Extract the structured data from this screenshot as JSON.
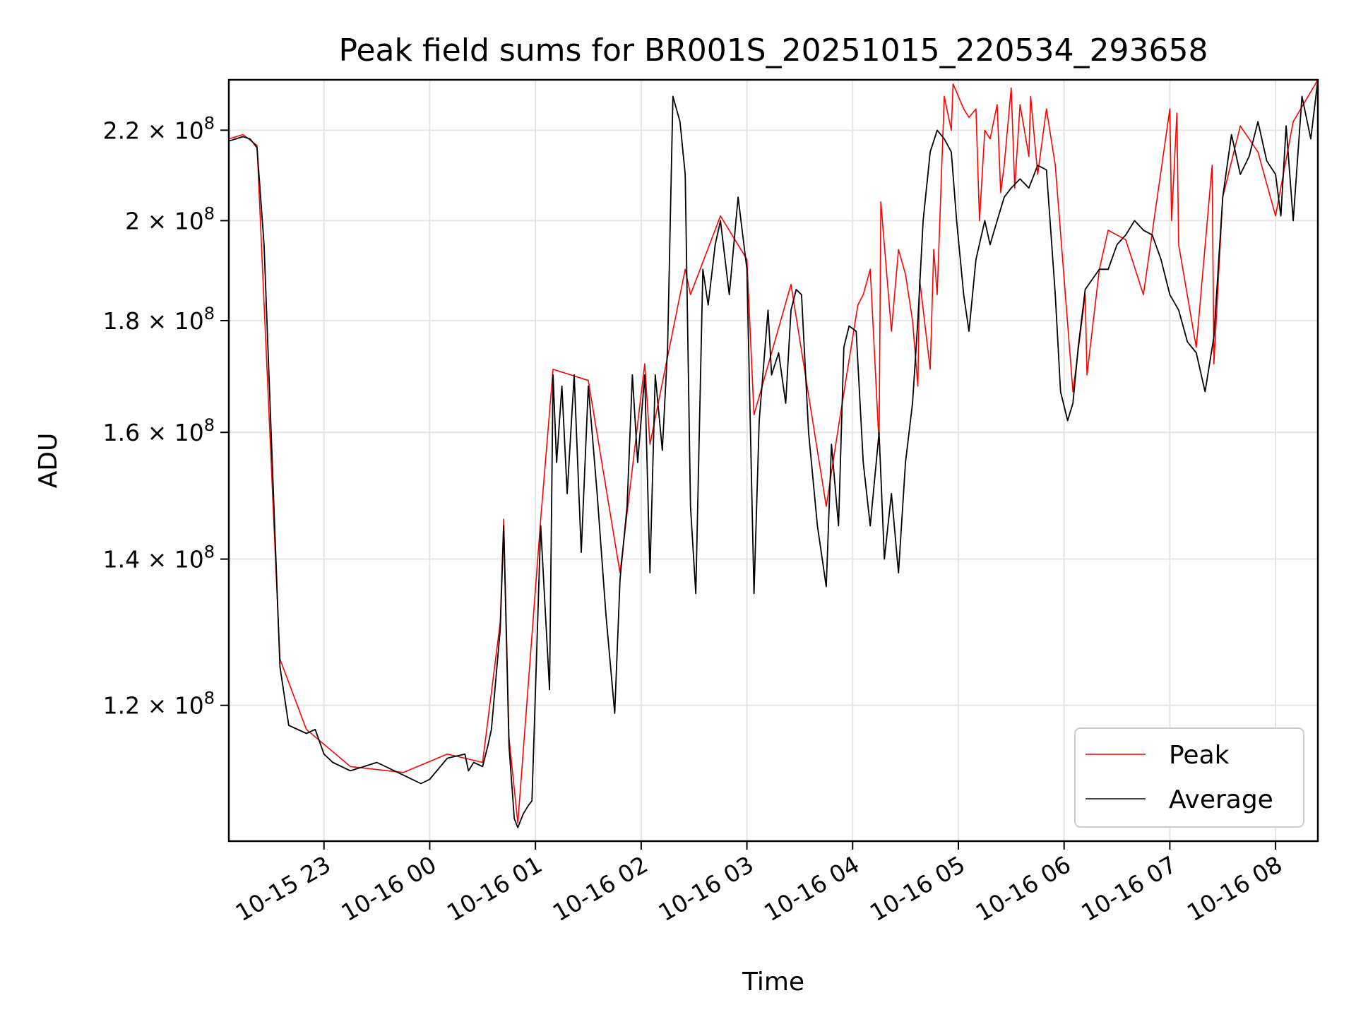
{
  "chart_data": {
    "type": "line",
    "title": "Peak field sums for BR001S_20251015_220534_293658",
    "xlabel": "Time",
    "ylabel": "ADU",
    "yscale": "log",
    "grid": true,
    "legend_position": "lower-right",
    "xlim": [
      "2025-10-15 22:06",
      "2025-10-16 08:24"
    ],
    "ylim": [
      104000000,
      232000000
    ],
    "x_ticks": [
      {
        "value": "2025-10-15 23:00",
        "label": "10-15 23"
      },
      {
        "value": "2025-10-16 00:00",
        "label": "10-16 00"
      },
      {
        "value": "2025-10-16 01:00",
        "label": "10-16 01"
      },
      {
        "value": "2025-10-16 02:00",
        "label": "10-16 02"
      },
      {
        "value": "2025-10-16 03:00",
        "label": "10-16 03"
      },
      {
        "value": "2025-10-16 04:00",
        "label": "10-16 04"
      },
      {
        "value": "2025-10-16 05:00",
        "label": "10-16 05"
      },
      {
        "value": "2025-10-16 06:00",
        "label": "10-16 06"
      },
      {
        "value": "2025-10-16 07:00",
        "label": "10-16 07"
      },
      {
        "value": "2025-10-16 08:00",
        "label": "10-16 08"
      }
    ],
    "y_ticks": [
      {
        "value": 120000000,
        "mantissa": "1.2",
        "exponent": "8"
      },
      {
        "value": 140000000,
        "mantissa": "1.4",
        "exponent": "8"
      },
      {
        "value": 160000000,
        "mantissa": "1.6",
        "exponent": "8"
      },
      {
        "value": 180000000,
        "mantissa": "1.8",
        "exponent": "8"
      },
      {
        "value": 200000000,
        "mantissa": "2",
        "exponent": "8"
      },
      {
        "value": 220000000,
        "mantissa": "2.2",
        "exponent": "8"
      }
    ],
    "series": [
      {
        "name": "Average",
        "color": "#000000",
        "x": [
          "2025-10-15 22:06",
          "2025-10-15 22:10",
          "2025-10-15 22:14",
          "2025-10-15 22:18",
          "2025-10-15 22:22",
          "2025-10-15 22:26",
          "2025-10-15 22:30",
          "2025-10-15 22:35",
          "2025-10-15 22:40",
          "2025-10-15 22:50",
          "2025-10-15 22:55",
          "2025-10-15 23:00",
          "2025-10-15 23:05",
          "2025-10-15 23:15",
          "2025-10-15 23:30",
          "2025-10-15 23:45",
          "2025-10-15 23:55",
          "2025-10-16 00:00",
          "2025-10-16 00:10",
          "2025-10-16 00:20",
          "2025-10-16 00:22",
          "2025-10-16 00:25",
          "2025-10-16 00:30",
          "2025-10-16 00:33",
          "2025-10-16 00:35",
          "2025-10-16 00:40",
          "2025-10-16 00:42",
          "2025-10-16 00:45",
          "2025-10-16 00:48",
          "2025-10-16 00:50",
          "2025-10-16 00:53",
          "2025-10-16 00:56",
          "2025-10-16 00:58",
          "2025-10-16 01:03",
          "2025-10-16 01:08",
          "2025-10-16 01:10",
          "2025-10-16 01:12",
          "2025-10-16 01:15",
          "2025-10-16 01:18",
          "2025-10-16 01:22",
          "2025-10-16 01:26",
          "2025-10-16 01:30",
          "2025-10-16 01:35",
          "2025-10-16 01:40",
          "2025-10-16 01:45",
          "2025-10-16 01:48",
          "2025-10-16 01:52",
          "2025-10-16 01:55",
          "2025-10-16 01:58",
          "2025-10-16 02:02",
          "2025-10-16 02:05",
          "2025-10-16 02:08",
          "2025-10-16 02:12",
          "2025-10-16 02:15",
          "2025-10-16 02:18",
          "2025-10-16 02:22",
          "2025-10-16 02:25",
          "2025-10-16 02:28",
          "2025-10-16 02:31",
          "2025-10-16 02:35",
          "2025-10-16 02:38",
          "2025-10-16 02:42",
          "2025-10-16 02:45",
          "2025-10-16 02:50",
          "2025-10-16 02:55",
          "2025-10-16 03:00",
          "2025-10-16 03:04",
          "2025-10-16 03:07",
          "2025-10-16 03:12",
          "2025-10-16 03:14",
          "2025-10-16 03:18",
          "2025-10-16 03:22",
          "2025-10-16 03:25",
          "2025-10-16 03:28",
          "2025-10-16 03:31",
          "2025-10-16 03:35",
          "2025-10-16 03:40",
          "2025-10-16 03:45",
          "2025-10-16 03:48",
          "2025-10-16 03:52",
          "2025-10-16 03:55",
          "2025-10-16 03:58",
          "2025-10-16 04:02",
          "2025-10-16 04:06",
          "2025-10-16 04:10",
          "2025-10-16 04:15",
          "2025-10-16 04:18",
          "2025-10-16 04:22",
          "2025-10-16 04:26",
          "2025-10-16 04:30",
          "2025-10-16 04:34",
          "2025-10-16 04:37",
          "2025-10-16 04:40",
          "2025-10-16 04:44",
          "2025-10-16 04:48",
          "2025-10-16 04:52",
          "2025-10-16 04:56",
          "2025-10-16 04:59",
          "2025-10-16 05:03",
          "2025-10-16 05:06",
          "2025-10-16 05:10",
          "2025-10-16 05:15",
          "2025-10-16 05:18",
          "2025-10-16 05:22",
          "2025-10-16 05:26",
          "2025-10-16 05:30",
          "2025-10-16 05:35",
          "2025-10-16 05:40",
          "2025-10-16 05:45",
          "2025-10-16 05:50",
          "2025-10-16 05:55",
          "2025-10-16 05:58",
          "2025-10-16 06:02",
          "2025-10-16 06:05",
          "2025-10-16 06:08",
          "2025-10-16 06:12",
          "2025-10-16 06:16",
          "2025-10-16 06:20",
          "2025-10-16 06:25",
          "2025-10-16 06:30",
          "2025-10-16 06:35",
          "2025-10-16 06:40",
          "2025-10-16 06:45",
          "2025-10-16 06:50",
          "2025-10-16 06:55",
          "2025-10-16 07:00",
          "2025-10-16 07:05",
          "2025-10-16 07:10",
          "2025-10-16 07:15",
          "2025-10-16 07:20",
          "2025-10-16 07:25",
          "2025-10-16 07:30",
          "2025-10-16 07:35",
          "2025-10-16 07:40",
          "2025-10-16 07:45",
          "2025-10-16 07:50",
          "2025-10-16 07:55",
          "2025-10-16 08:00",
          "2025-10-16 08:03",
          "2025-10-16 08:06",
          "2025-10-16 08:10",
          "2025-10-16 08:15",
          "2025-10-16 08:20",
          "2025-10-16 08:24"
        ],
        "values": [
          217500000,
          218000000,
          218500000,
          218000000,
          216000000,
          195000000,
          160000000,
          125000000,
          117500000,
          116500000,
          117000000,
          114000000,
          113000000,
          112000000,
          113000000,
          111500000,
          110500000,
          111000000,
          113500000,
          114000000,
          112000000,
          113000000,
          112500000,
          115000000,
          117000000,
          130000000,
          145000000,
          115000000,
          106500000,
          105500000,
          107000000,
          108000000,
          108500000,
          145000000,
          122000000,
          170000000,
          155000000,
          168000000,
          150000000,
          170000000,
          141000000,
          168000000,
          150000000,
          132000000,
          119000000,
          137000000,
          148000000,
          170000000,
          155000000,
          170000000,
          138000000,
          170000000,
          157000000,
          175000000,
          228000000,
          222000000,
          210000000,
          148000000,
          135000000,
          190000000,
          183000000,
          195000000,
          200000000,
          185000000,
          205000000,
          190000000,
          135000000,
          162000000,
          182000000,
          170000000,
          174000000,
          165000000,
          182000000,
          186000000,
          185000000,
          160000000,
          145000000,
          136000000,
          158000000,
          145000000,
          175000000,
          179000000,
          178000000,
          155000000,
          145000000,
          160000000,
          140000000,
          150000000,
          138000000,
          155000000,
          165000000,
          180000000,
          200000000,
          215000000,
          220000000,
          218000000,
          215000000,
          200000000,
          185000000,
          178000000,
          192000000,
          200000000,
          195000000,
          200000000,
          205000000,
          207000000,
          209000000,
          207000000,
          212000000,
          211000000,
          185000000,
          167000000,
          162000000,
          165000000,
          175000000,
          186000000,
          188000000,
          190000000,
          190000000,
          195000000,
          197000000,
          200000000,
          198000000,
          197000000,
          192000000,
          185000000,
          182000000,
          176000000,
          174000000,
          167000000,
          177000000,
          205000000,
          219000000,
          210000000,
          214000000,
          222000000,
          213000000,
          210000000,
          201000000,
          221000000,
          200000000,
          228000000,
          218000000,
          232000000
        ]
      },
      {
        "name": "Peak",
        "color": "#ff0000",
        "x": [
          "2025-10-15 22:06",
          "2025-10-15 22:14",
          "2025-10-15 22:22",
          "2025-10-15 22:35",
          "2025-10-15 22:50",
          "2025-10-15 23:15",
          "2025-10-15 23:45",
          "2025-10-16 00:10",
          "2025-10-16 00:30",
          "2025-10-16 00:40",
          "2025-10-16 00:42",
          "2025-10-16 00:45",
          "2025-10-16 00:50",
          "2025-10-16 01:03",
          "2025-10-16 01:10",
          "2025-10-16 01:30",
          "2025-10-16 01:48",
          "2025-10-16 02:02",
          "2025-10-16 02:05",
          "2025-10-16 02:25",
          "2025-10-16 02:28",
          "2025-10-16 02:45",
          "2025-10-16 03:00",
          "2025-10-16 03:04",
          "2025-10-16 03:25",
          "2025-10-16 03:45",
          "2025-10-16 03:52",
          "2025-10-16 04:02",
          "2025-10-16 04:03",
          "2025-10-16 04:06",
          "2025-10-16 04:10",
          "2025-10-16 04:15",
          "2025-10-16 04:16",
          "2025-10-16 04:22",
          "2025-10-16 04:26",
          "2025-10-16 04:30",
          "2025-10-16 04:34",
          "2025-10-16 04:37",
          "2025-10-16 04:38",
          "2025-10-16 04:44",
          "2025-10-16 04:46",
          "2025-10-16 04:48",
          "2025-10-16 04:52",
          "2025-10-16 04:56",
          "2025-10-16 04:57",
          "2025-10-16 05:03",
          "2025-10-16 05:06",
          "2025-10-16 05:10",
          "2025-10-16 05:12",
          "2025-10-16 05:15",
          "2025-10-16 05:18",
          "2025-10-16 05:22",
          "2025-10-16 05:24",
          "2025-10-16 05:26",
          "2025-10-16 05:30",
          "2025-10-16 05:32",
          "2025-10-16 05:35",
          "2025-10-16 05:40",
          "2025-10-16 05:41",
          "2025-10-16 05:45",
          "2025-10-16 05:50",
          "2025-10-16 05:55",
          "2025-10-16 06:05",
          "2025-10-16 06:12",
          "2025-10-16 06:13",
          "2025-10-16 06:20",
          "2025-10-16 06:25",
          "2025-10-16 06:35",
          "2025-10-16 06:45",
          "2025-10-16 07:00",
          "2025-10-16 07:01",
          "2025-10-16 07:04",
          "2025-10-16 07:05",
          "2025-10-16 07:15",
          "2025-10-16 07:24",
          "2025-10-16 07:25",
          "2025-10-16 07:30",
          "2025-10-16 07:40",
          "2025-10-16 07:50",
          "2025-10-16 08:00",
          "2025-10-16 08:10",
          "2025-10-16 08:24"
        ],
        "values": [
          218000000,
          219000000,
          216500000,
          126000000,
          117000000,
          112500000,
          111800000,
          114000000,
          113000000,
          131000000,
          146000000,
          116000000,
          106000000,
          146000000,
          171000000,
          169000000,
          138000000,
          172000000,
          158000000,
          190000000,
          185000000,
          201000000,
          192000000,
          163000000,
          187000000,
          148000000,
          161000000,
          181000000,
          183000000,
          185000000,
          190000000,
          158000000,
          204000000,
          178000000,
          194000000,
          189000000,
          180000000,
          168000000,
          188000000,
          171000000,
          194000000,
          185000000,
          228000000,
          220000000,
          231000000,
          225000000,
          223000000,
          225000000,
          200000000,
          220000000,
          218000000,
          226000000,
          206000000,
          212000000,
          230000000,
          207000000,
          226000000,
          214000000,
          228000000,
          210000000,
          225000000,
          212000000,
          167000000,
          185000000,
          170000000,
          190000000,
          198000000,
          196000000,
          185000000,
          225000000,
          200000000,
          224000000,
          195000000,
          175000000,
          212000000,
          172000000,
          205000000,
          221000000,
          215000000,
          201000000,
          222000000,
          232000000
        ]
      }
    ]
  }
}
